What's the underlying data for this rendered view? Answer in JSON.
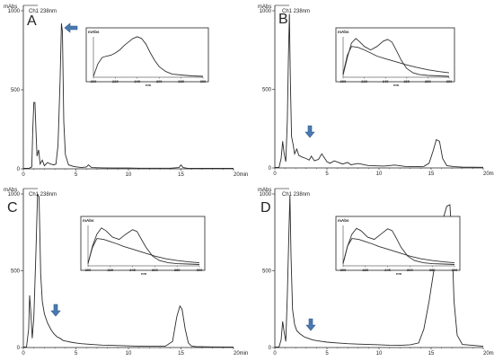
{
  "colors": {
    "trace": "#2a2a2a",
    "axis": "#222222",
    "spectrum": "#333333",
    "arrow": "#4a79b0",
    "arrow_edge": "#2e5a8c"
  },
  "icons": {
    "peak_marker": "arrow-icon"
  },
  "chart_data": [
    {
      "type": "line",
      "panel": "A",
      "y_unit": "mAbs",
      "y_ticks": [
        "1000",
        "500",
        "0"
      ],
      "x_ticks": [
        "0",
        "5",
        "10",
        "15",
        "20min"
      ],
      "xlim": [
        0,
        20
      ],
      "ylim": [
        0,
        1000
      ],
      "detector": "Ch1 238nm",
      "series": [
        {
          "x": [
            0,
            0.5,
            0.8,
            0.9,
            1.0,
            1.1,
            1.2,
            1.3,
            1.45,
            1.6,
            1.8,
            2.0,
            2.3,
            2.6,
            2.9,
            3.1,
            3.3,
            3.5,
            3.62,
            3.72,
            3.85,
            4.0,
            4.3,
            4.8,
            5.5,
            6.0,
            6.2,
            6.5,
            7.5,
            9,
            10,
            11,
            12,
            13,
            14,
            14.8,
            15.0,
            15.2,
            15.6,
            17,
            19,
            20
          ],
          "y": [
            3,
            3,
            12,
            250,
            420,
            420,
            250,
            80,
            120,
            30,
            55,
            20,
            40,
            30,
            25,
            30,
            150,
            560,
            920,
            870,
            300,
            90,
            25,
            15,
            8,
            12,
            25,
            8,
            6,
            5,
            5,
            4,
            4,
            4,
            4,
            8,
            25,
            8,
            4,
            3,
            3,
            3
          ]
        }
      ],
      "inset": {
        "y_label": "mAbs",
        "x_ticks": [
          "200",
          "220",
          "240",
          "260",
          "280",
          "300"
        ],
        "x_unit": "nm",
        "xlim": [
          200,
          300
        ],
        "series": [
          {
            "x": [
              200,
              204,
              208,
              212,
              216,
              220,
              224,
              228,
              232,
              236,
              240,
              244,
              248,
              252,
              256,
              260,
              266,
              272,
              280,
              290,
              300
            ],
            "y": [
              0.02,
              0.3,
              0.45,
              0.48,
              0.5,
              0.55,
              0.62,
              0.72,
              0.8,
              0.88,
              0.92,
              0.88,
              0.75,
              0.55,
              0.38,
              0.24,
              0.13,
              0.07,
              0.05,
              0.03,
              0.02
            ]
          }
        ]
      }
    },
    {
      "type": "line",
      "panel": "B",
      "y_unit": "mAbs",
      "y_ticks": [
        "1000",
        "500",
        "0"
      ],
      "x_ticks": [
        "0",
        "5",
        "10",
        "15",
        "20min"
      ],
      "xlim": [
        0,
        20
      ],
      "ylim": [
        0,
        1000
      ],
      "detector": "Ch1 238nm",
      "series": [
        {
          "x": [
            0,
            0.4,
            0.6,
            0.75,
            0.9,
            1.05,
            1.2,
            1.3,
            1.4,
            1.5,
            1.6,
            1.75,
            1.9,
            2.1,
            2.3,
            2.6,
            3.0,
            3.3,
            3.5,
            3.8,
            4.2,
            4.5,
            5.0,
            5.3,
            5.7,
            6.5,
            7.0,
            7.3,
            8.0,
            9.0,
            10.5,
            11.5,
            12.5,
            13.5,
            14.3,
            14.8,
            15.2,
            15.5,
            15.8,
            16.1,
            16.5,
            17.2,
            18,
            20
          ],
          "y": [
            3,
            3,
            60,
            170,
            90,
            40,
            300,
            700,
            980,
            520,
            200,
            150,
            90,
            120,
            80,
            70,
            60,
            50,
            75,
            45,
            55,
            90,
            40,
            30,
            45,
            25,
            35,
            20,
            28,
            15,
            12,
            18,
            10,
            8,
            10,
            30,
            110,
            180,
            170,
            60,
            15,
            8,
            5,
            4
          ]
        }
      ],
      "inset": {
        "y_label": "mAbs",
        "x_ticks": [
          "200",
          "220",
          "240",
          "260",
          "280",
          "300"
        ],
        "x_unit": "nm",
        "xlim": [
          200,
          300
        ],
        "series": [
          {
            "x": [
              200,
              204,
              208,
              212,
              215,
              220,
              226,
              232,
              238,
              242,
              246,
              250,
              255,
              260,
              266,
              272,
              280,
              290,
              300
            ],
            "y": [
              0.05,
              0.45,
              0.78,
              0.88,
              0.82,
              0.7,
              0.62,
              0.7,
              0.82,
              0.86,
              0.8,
              0.62,
              0.38,
              0.2,
              0.1,
              0.06,
              0.04,
              0.03,
              0.02
            ]
          },
          {
            "x": [
              200,
              204,
              208,
              214,
              220,
              226,
              232,
              240,
              250,
              260,
              270,
              280,
              290,
              300
            ],
            "y": [
              0.08,
              0.5,
              0.7,
              0.68,
              0.62,
              0.55,
              0.48,
              0.42,
              0.35,
              0.28,
              0.22,
              0.17,
              0.13,
              0.1
            ]
          }
        ]
      }
    },
    {
      "type": "line",
      "panel": "C",
      "y_unit": "mAbs",
      "y_ticks": [
        "1000",
        "500",
        "0"
      ],
      "x_ticks": [
        "0",
        "5",
        "10",
        "15",
        "20min"
      ],
      "xlim": [
        0,
        20
      ],
      "ylim": [
        0,
        1000
      ],
      "detector": "Ch1 238nm",
      "series": [
        {
          "x": [
            0,
            0.3,
            0.5,
            0.6,
            0.7,
            0.85,
            1.0,
            1.2,
            1.35,
            1.5,
            1.65,
            1.8,
            2.0,
            2.3,
            2.6,
            2.9,
            3.2,
            3.5,
            3.8,
            4.2,
            4.5,
            5.0,
            5.5,
            6.5,
            7.5,
            8.5,
            9.5,
            10.5,
            11.5,
            12.5,
            13.5,
            14.2,
            14.6,
            14.9,
            15.1,
            15.4,
            15.7,
            16.0,
            16.4,
            17.0,
            18,
            20
          ],
          "y": [
            3,
            3,
            120,
            340,
            240,
            60,
            200,
            620,
            1000,
            980,
            480,
            300,
            220,
            160,
            120,
            90,
            70,
            60,
            45,
            40,
            35,
            30,
            25,
            20,
            16,
            14,
            12,
            10,
            8,
            8,
            8,
            40,
            200,
            270,
            250,
            120,
            30,
            10,
            6,
            5,
            4,
            3
          ]
        }
      ],
      "inset": {
        "y_label": "mAbs",
        "x_ticks": [
          "200",
          "220",
          "240",
          "260",
          "280",
          "300"
        ],
        "x_unit": "nm",
        "xlim": [
          200,
          300
        ],
        "series": [
          {
            "x": [
              200,
              204,
              208,
              212,
              216,
              222,
              228,
              234,
              240,
              244,
              248,
              252,
              258,
              264,
              272,
              280,
              290,
              300
            ],
            "y": [
              0.05,
              0.45,
              0.72,
              0.86,
              0.8,
              0.65,
              0.6,
              0.72,
              0.82,
              0.78,
              0.6,
              0.42,
              0.22,
              0.12,
              0.07,
              0.05,
              0.04,
              0.03
            ]
          },
          {
            "x": [
              200,
              204,
              208,
              214,
              220,
              226,
              232,
              240,
              250,
              260,
              270,
              280,
              290,
              300
            ],
            "y": [
              0.06,
              0.42,
              0.62,
              0.6,
              0.55,
              0.5,
              0.44,
              0.38,
              0.3,
              0.22,
              0.16,
              0.12,
              0.09,
              0.07
            ]
          }
        ]
      }
    },
    {
      "type": "line",
      "panel": "D",
      "y_unit": "mAbs",
      "y_ticks": [
        "1000",
        "500",
        "0"
      ],
      "x_ticks": [
        "0",
        "5",
        "10",
        "15",
        "20min"
      ],
      "xlim": [
        0,
        20
      ],
      "ylim": [
        0,
        1000
      ],
      "detector": "Ch1 238nm",
      "series": [
        {
          "x": [
            0,
            0.4,
            0.6,
            0.75,
            0.9,
            1.05,
            1.2,
            1.35,
            1.45,
            1.55,
            1.7,
            1.9,
            2.1,
            2.4,
            2.8,
            3.2,
            3.6,
            4.0,
            4.5,
            5.0,
            6.0,
            7.0,
            8.0,
            9.0,
            10.0,
            11.0,
            12.0,
            13.0,
            13.8,
            14.3,
            14.8,
            15.3,
            15.8,
            16.2,
            16.5,
            16.8,
            17.0,
            17.2,
            17.5,
            18,
            20
          ],
          "y": [
            3,
            3,
            50,
            170,
            100,
            40,
            340,
            760,
            990,
            600,
            250,
            150,
            110,
            90,
            70,
            60,
            50,
            45,
            40,
            35,
            30,
            25,
            22,
            20,
            18,
            15,
            14,
            18,
            30,
            120,
            300,
            520,
            700,
            850,
            920,
            930,
            700,
            300,
            80,
            20,
            8
          ]
        }
      ],
      "inset": {
        "y_label": "mAbs",
        "x_ticks": [
          "200",
          "220",
          "240",
          "260",
          "280",
          "300"
        ],
        "x_unit": "nm",
        "xlim": [
          200,
          300
        ],
        "series": [
          {
            "x": [
              200,
              204,
              208,
              212,
              216,
              222,
              228,
              234,
              240,
              244,
              248,
              252,
              258,
              264,
              272,
              280,
              290,
              300
            ],
            "y": [
              0.05,
              0.45,
              0.72,
              0.85,
              0.8,
              0.65,
              0.6,
              0.72,
              0.84,
              0.8,
              0.62,
              0.42,
              0.22,
              0.12,
              0.07,
              0.05,
              0.04,
              0.03
            ]
          },
          {
            "x": [
              200,
              204,
              208,
              214,
              220,
              226,
              232,
              240,
              250,
              260,
              270,
              280,
              290,
              300
            ],
            "y": [
              0.06,
              0.45,
              0.62,
              0.6,
              0.55,
              0.5,
              0.44,
              0.38,
              0.3,
              0.22,
              0.16,
              0.12,
              0.09,
              0.07
            ]
          }
        ]
      }
    }
  ]
}
